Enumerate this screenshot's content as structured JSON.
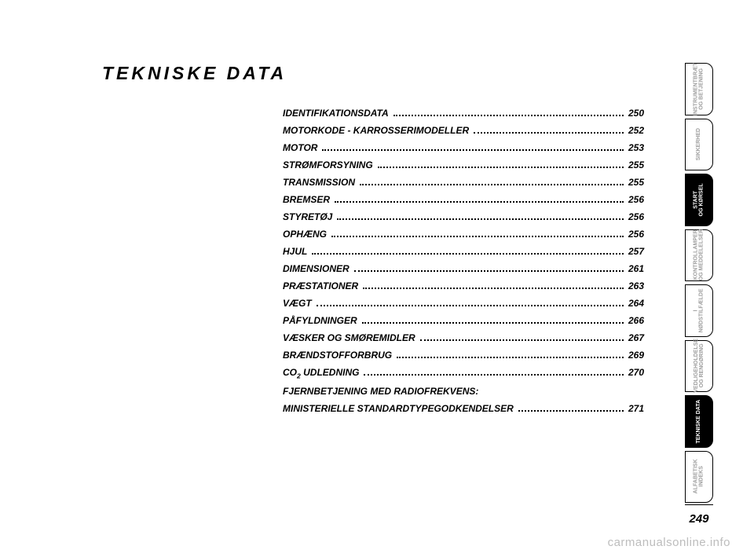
{
  "title": {
    "text": "TEKNISKE DATA",
    "fontsize": 23
  },
  "toc": {
    "fontsize": 12,
    "entries": [
      {
        "label": "IDENTIFIKATIONSDATA",
        "page": "250"
      },
      {
        "label": "MOTORKODE - KARROSSERIMODELLER",
        "page": "252"
      },
      {
        "label": "MOTOR",
        "page": "253"
      },
      {
        "label": "STRØMFORSYNING",
        "page": "255"
      },
      {
        "label": "TRANSMISSION",
        "page": "255"
      },
      {
        "label": "BREMSER",
        "page": "256"
      },
      {
        "label": "STYRETØJ",
        "page": "256"
      },
      {
        "label": "OPHÆNG",
        "page": "256"
      },
      {
        "label": "HJUL",
        "page": "257"
      },
      {
        "label": "DIMENSIONER",
        "page": "261"
      },
      {
        "label": "PRÆSTATIONER",
        "page": "263"
      },
      {
        "label": "VÆGT",
        "page": "264"
      },
      {
        "label": "PÅFYLDNINGER",
        "page": "266"
      },
      {
        "label": "VÆSKER OG SMØREMIDLER",
        "page": "267"
      },
      {
        "label": "BRÆNDSTOFFORBRUG",
        "page": "269"
      },
      {
        "label_html": "CO<span class='sub'>2</span> UDLEDNING",
        "page": "270"
      },
      {
        "label": "FJERNBETJENING MED RADIOFREKVENS:",
        "label2": "MINISTERIELLE STANDARDTYPEGODKENDELSER",
        "page": "271"
      }
    ]
  },
  "tabs": [
    {
      "text": "INSTRUMENTBRÆT\nOG BETJENING",
      "style": "light"
    },
    {
      "text": "SIKKERHED",
      "style": "light"
    },
    {
      "text": "START\nOG KØRSEL",
      "style": "dark"
    },
    {
      "text": "KONTROLLAMPER\nOG MEDDELELSER",
      "style": "light"
    },
    {
      "text": "I\nNØDSTILFÆLDE",
      "style": "light"
    },
    {
      "text": "VEDLIGEHOLDELSE\nOG RENGØRING",
      "style": "light"
    },
    {
      "text": "TEKNISKE DATA",
      "style": "dark"
    },
    {
      "text": "ALFABETISK\nINDEKS",
      "style": "light"
    }
  ],
  "page_number": "249",
  "watermark": {
    "text": "carmanualsonline.info",
    "fontsize": 15
  }
}
